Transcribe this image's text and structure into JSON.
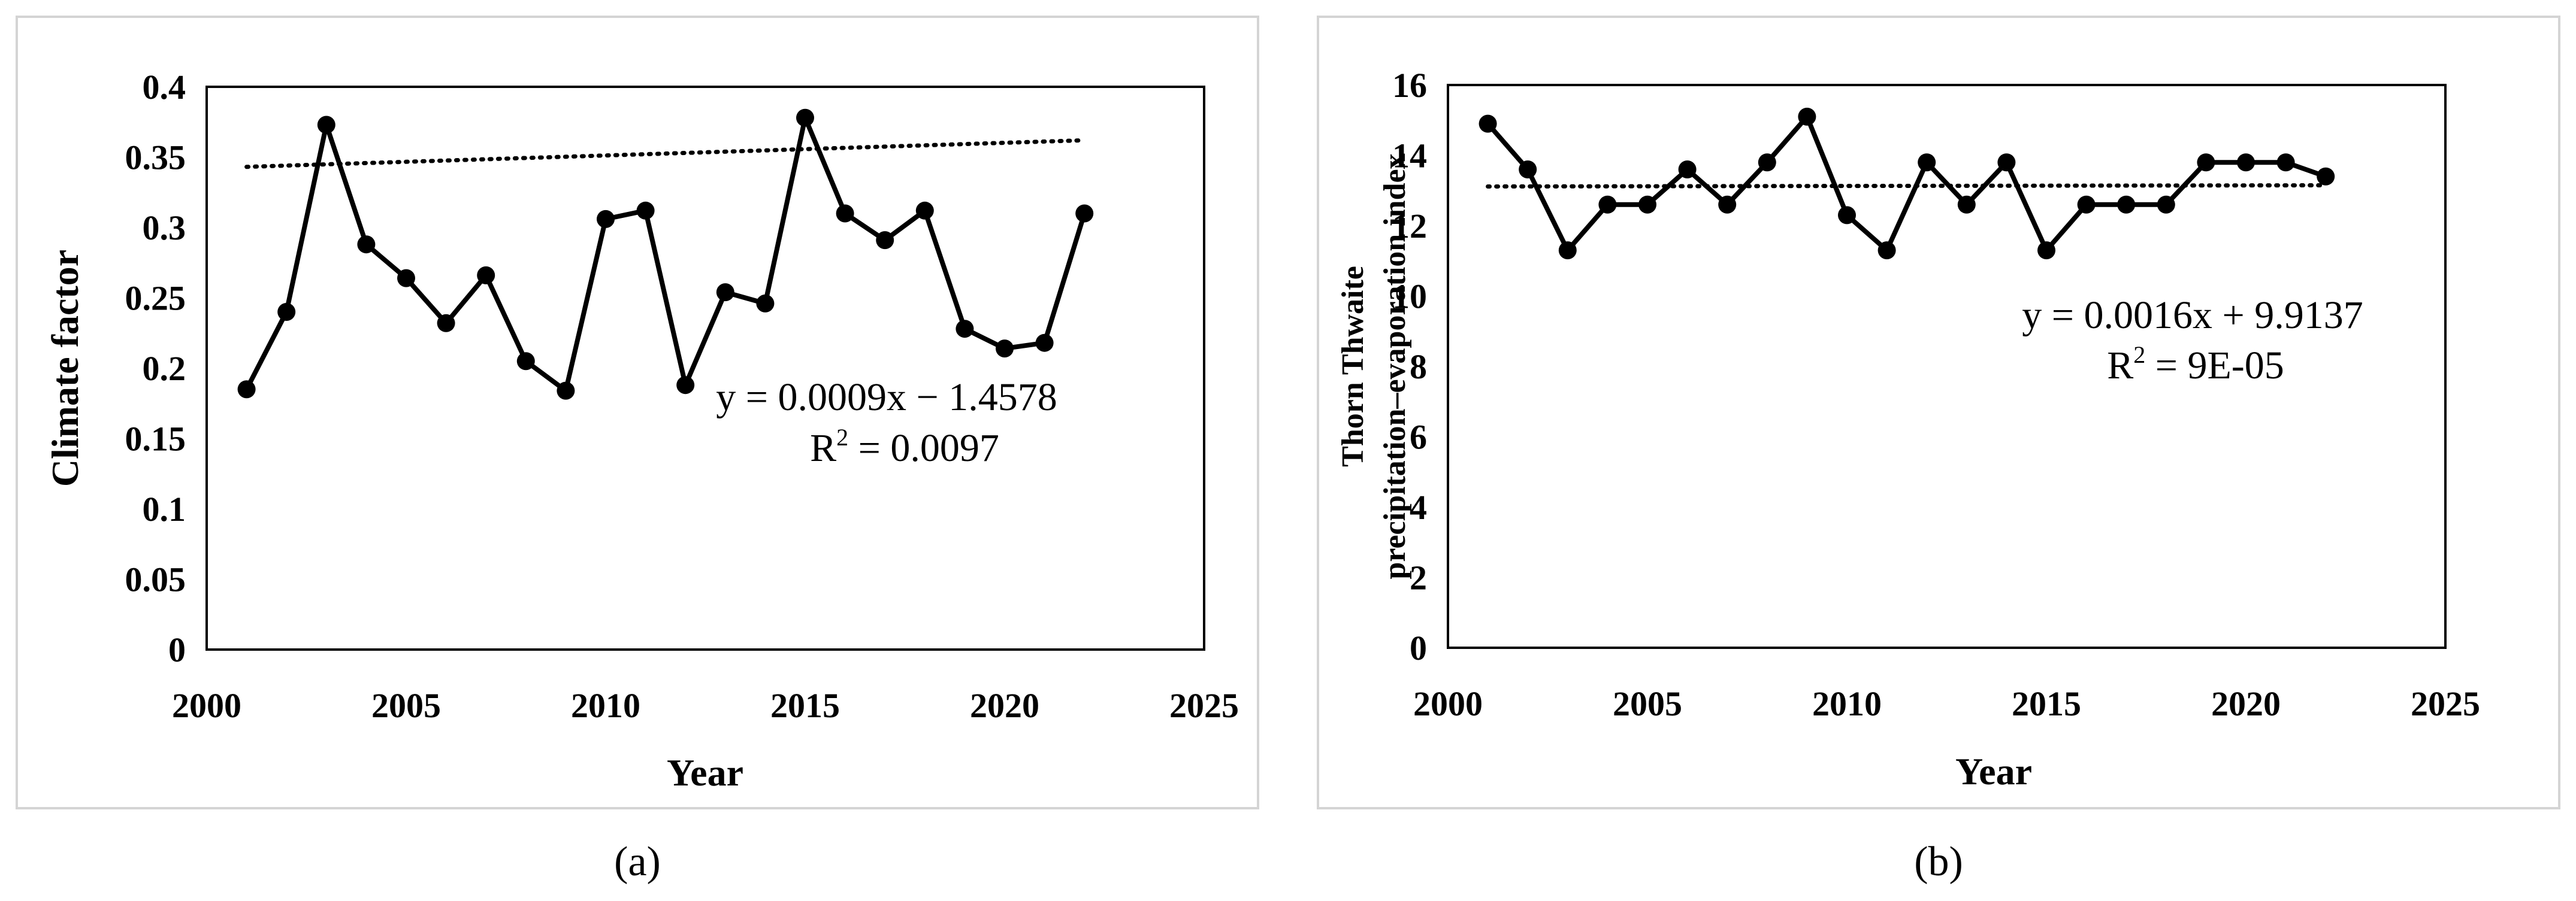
{
  "chart_data": [
    {
      "type": "line",
      "panel_label": "(a)",
      "xlabel": "Year",
      "ylabel": "Climate factor",
      "xlim": [
        2000,
        2025
      ],
      "ylim": [
        0,
        0.4
      ],
      "x_ticks": [
        "2000",
        "2005",
        "2010",
        "2015",
        "2020",
        "2025"
      ],
      "y_ticks": [
        "0",
        "0.05",
        "0.1",
        "0.15",
        "0.2",
        "0.25",
        "0.3",
        "0.35",
        "0.4"
      ],
      "series": [
        {
          "name": "Climate factor",
          "x": [
            2001,
            2002,
            2003,
            2004,
            2005,
            2006,
            2007,
            2008,
            2009,
            2010,
            2011,
            2012,
            2013,
            2014,
            2015,
            2016,
            2017,
            2018,
            2019,
            2020,
            2021,
            2022
          ],
          "values": [
            0.185,
            0.24,
            0.373,
            0.288,
            0.264,
            0.232,
            0.266,
            0.205,
            0.184,
            0.306,
            0.312,
            0.188,
            0.254,
            0.246,
            0.378,
            0.31,
            0.291,
            0.312,
            0.228,
            0.214,
            0.218,
            0.31
          ]
        }
      ],
      "trendline": {
        "slope": 0.0009,
        "intercept": -1.4578,
        "equation": "y = 0.0009x − 1.4578",
        "r2_label": "R",
        "r2_sup": "2",
        "r2_value": " = 0.0097"
      }
    },
    {
      "type": "line",
      "panel_label": "(b)",
      "xlabel": "Year",
      "ylabel_line1": "Thorn Thwaite",
      "ylabel_line2": "precipitation–evaporation index",
      "xlim": [
        2000,
        2025
      ],
      "ylim": [
        0,
        16
      ],
      "x_ticks": [
        "2000",
        "2005",
        "2010",
        "2015",
        "2020",
        "2025"
      ],
      "y_ticks": [
        "0",
        "2",
        "4",
        "6",
        "8",
        "10",
        "12",
        "14",
        "16"
      ],
      "series": [
        {
          "name": "Thorn Thwaite precipitation–evaporation index",
          "x": [
            2001,
            2002,
            2003,
            2004,
            2005,
            2006,
            2007,
            2008,
            2009,
            2010,
            2011,
            2012,
            2013,
            2014,
            2015,
            2016,
            2017,
            2018,
            2019,
            2020,
            2021,
            2022
          ],
          "values": [
            14.9,
            13.6,
            11.3,
            12.6,
            12.6,
            13.6,
            12.6,
            13.8,
            15.1,
            12.3,
            11.3,
            13.8,
            12.6,
            13.8,
            11.3,
            12.6,
            12.6,
            12.6,
            13.8,
            13.8,
            13.8,
            13.4
          ]
        }
      ],
      "trendline": {
        "slope": 0.0016,
        "intercept": 9.9137,
        "equation": "y = 0.0016x + 9.9137",
        "r2_label": "R",
        "r2_sup": "2",
        "r2_value": " = 9E-05"
      }
    }
  ]
}
